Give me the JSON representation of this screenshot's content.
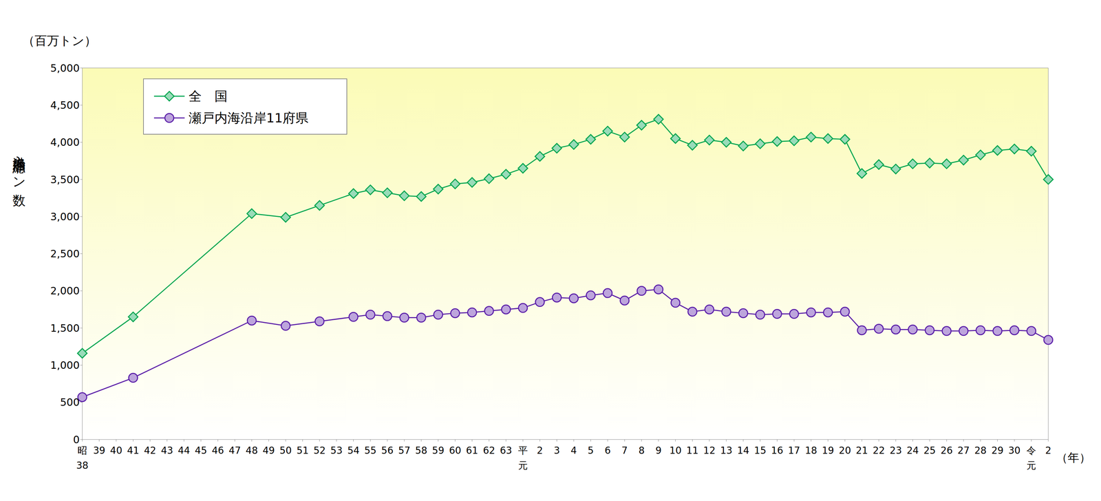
{
  "chart_data": {
    "type": "line",
    "ylabel": "入港船舶総トン数",
    "xlabel": "（年）",
    "annotations": [
      {
        "text": "（百万トン）"
      }
    ],
    "categories": [
      "昭\n38",
      "39",
      "40",
      "41",
      "42",
      "43",
      "44",
      "45",
      "46",
      "47",
      "48",
      "49",
      "50",
      "51",
      "52",
      "53",
      "54",
      "55",
      "56",
      "57",
      "58",
      "59",
      "60",
      "61",
      "62",
      "63",
      "平\n元",
      "2",
      "3",
      "4",
      "5",
      "6",
      "7",
      "8",
      "9",
      "10",
      "11",
      "12",
      "13",
      "14",
      "15",
      "16",
      "17",
      "18",
      "19",
      "20",
      "21",
      "22",
      "23",
      "24",
      "25",
      "26",
      "27",
      "28",
      "29",
      "30",
      "令\n元",
      "2"
    ],
    "series": [
      {
        "name": "全　国",
        "color": "#00a550",
        "marker": "diamond",
        "values": [
          1160,
          null,
          null,
          1650,
          null,
          null,
          null,
          null,
          null,
          null,
          3040,
          null,
          2990,
          null,
          3150,
          null,
          3310,
          3360,
          3320,
          3280,
          3270,
          3370,
          3440,
          3460,
          3510,
          3570,
          3650,
          3810,
          3920,
          3970,
          4040,
          4150,
          4070,
          4230,
          4310,
          4050,
          3960,
          4030,
          4000,
          3950,
          3980,
          4010,
          4020,
          4070,
          4050,
          4040,
          3580,
          3700,
          3640,
          3710,
          3720,
          3710,
          3760,
          3830,
          3890,
          3910,
          3880,
          3500
        ]
      },
      {
        "name": "瀬戸内海沿岸11府県",
        "color": "#5a1ea8",
        "marker": "circle",
        "values": [
          570,
          null,
          null,
          830,
          null,
          null,
          null,
          null,
          null,
          null,
          1600,
          null,
          1530,
          null,
          1590,
          null,
          1650,
          1680,
          1660,
          1640,
          1640,
          1680,
          1700,
          1710,
          1730,
          1750,
          1770,
          1850,
          1910,
          1900,
          1940,
          1970,
          1870,
          2000,
          2020,
          1840,
          1720,
          1750,
          1720,
          1700,
          1680,
          1690,
          1690,
          1710,
          1710,
          1720,
          1470,
          1490,
          1480,
          1480,
          1470,
          1460,
          1460,
          1470,
          1460,
          1470,
          1460,
          1340
        ]
      }
    ],
    "ylim": [
      0,
      5000
    ],
    "yticks": [
      0,
      500,
      {
        "value": 1000,
        "label": "1,000"
      },
      {
        "value": 1500,
        "label": "1,500"
      },
      {
        "value": 2000,
        "label": "2,000"
      },
      {
        "value": 2500,
        "label": "2,500"
      },
      {
        "value": 3000,
        "label": "3,000"
      },
      {
        "value": 3500,
        "label": "3,500"
      },
      {
        "value": 4000,
        "label": "4,000"
      },
      {
        "value": 4500,
        "label": "4,500"
      },
      {
        "value": 5000,
        "label": "5,000"
      }
    ],
    "grid": false,
    "legend": "upper left"
  }
}
